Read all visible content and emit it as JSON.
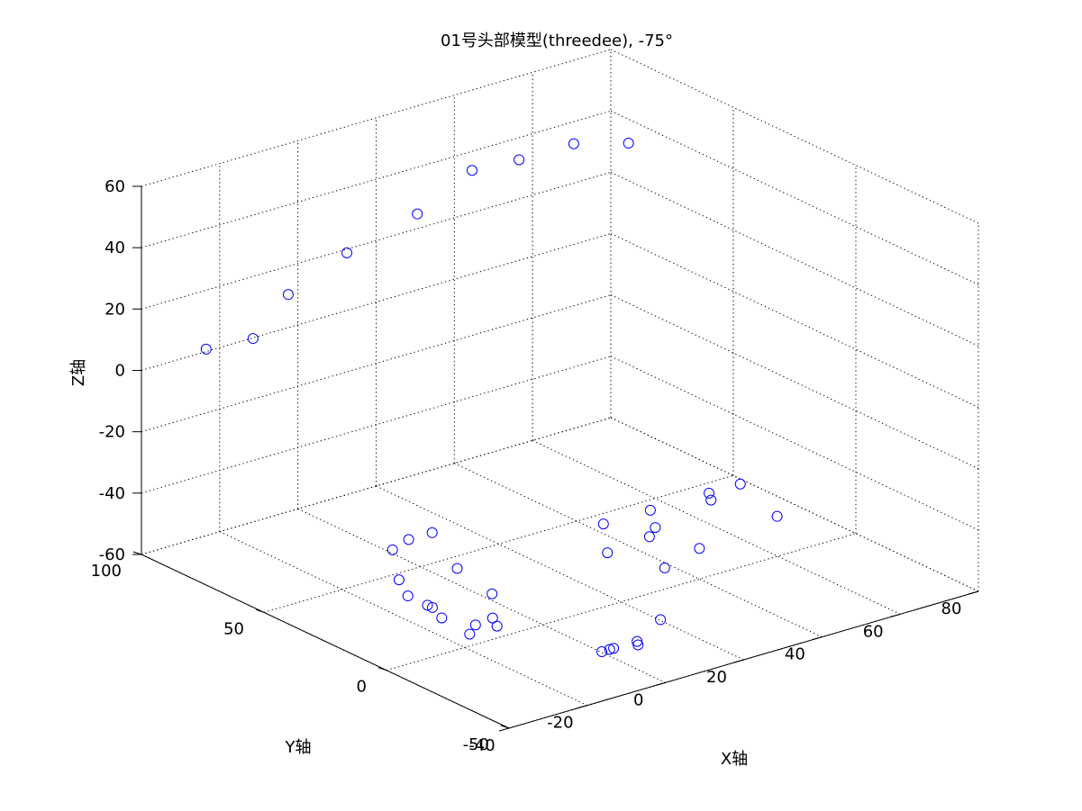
{
  "chart_data": {
    "type": "scatter",
    "title": "01号头部模型(threedee), -75°",
    "xlabel": "X轴",
    "ylabel": "Y轴",
    "zlabel": "Z轴",
    "xlim": [
      -40,
      80
    ],
    "ylim": [
      -50,
      100
    ],
    "zlim": [
      -60,
      60
    ],
    "x_ticks": [
      "-40",
      "-20",
      "0",
      "20",
      "40",
      "60",
      "80"
    ],
    "y_ticks": [
      "-50",
      "0",
      "50",
      "100"
    ],
    "z_ticks": [
      "-60",
      "-40",
      "-20",
      "0",
      "20",
      "40",
      "60"
    ],
    "grid": true,
    "marker": "circle",
    "marker_color": "#0000ff",
    "view": {
      "azimuth": -75
    },
    "points": [
      {
        "x": -36,
        "y": 80,
        "z": 13
      },
      {
        "x": -24,
        "y": 80,
        "z": 12
      },
      {
        "x": -15,
        "y": 80,
        "z": 23
      },
      {
        "x": 0,
        "y": 80,
        "z": 31
      },
      {
        "x": 18,
        "y": 80,
        "z": 37
      },
      {
        "x": 32,
        "y": 80,
        "z": 46
      },
      {
        "x": 44,
        "y": 80,
        "z": 45
      },
      {
        "x": 58,
        "y": 80,
        "z": 45
      },
      {
        "x": 72,
        "y": 80,
        "z": 40
      },
      {
        "x": 45,
        "y": 28,
        "z": -50
      },
      {
        "x": 68,
        "y": 28,
        "z": -50
      },
      {
        "x": 60,
        "y": 28,
        "z": -50
      },
      {
        "x": 33,
        "y": 28,
        "z": -50
      },
      {
        "x": 40,
        "y": 18,
        "z": -50
      },
      {
        "x": 36,
        "y": 14,
        "z": -50
      },
      {
        "x": 24,
        "y": 12,
        "z": -50
      },
      {
        "x": 40,
        "y": 0,
        "z": -50
      },
      {
        "x": 63,
        "y": 5,
        "z": -50
      },
      {
        "x": 28,
        "y": -5,
        "z": -50
      },
      {
        "x": 58,
        "y": 24,
        "z": -50
      },
      {
        "x": 3,
        "y": 50,
        "z": -50
      },
      {
        "x": -3,
        "y": 50,
        "z": -50
      },
      {
        "x": -9,
        "y": 47,
        "z": -50
      },
      {
        "x": -5,
        "y": 27,
        "z": -50
      },
      {
        "x": -18,
        "y": 30,
        "z": -50
      },
      {
        "x": -22,
        "y": 12,
        "z": -50
      },
      {
        "x": -22,
        "y": 10,
        "z": -50
      },
      {
        "x": -22,
        "y": 20,
        "z": -50
      },
      {
        "x": -24,
        "y": 3,
        "z": -50
      },
      {
        "x": -21,
        "y": -6,
        "z": -50
      },
      {
        "x": -25,
        "y": -10,
        "z": -50
      },
      {
        "x": -8,
        "y": 8,
        "z": -50
      },
      {
        "x": -16,
        "y": -5,
        "z": -50
      },
      {
        "x": -18,
        "y": -10,
        "z": -50
      },
      {
        "x": -10,
        "y": -40,
        "z": -50
      },
      {
        "x": -8,
        "y": -40,
        "z": -50
      },
      {
        "x": -2,
        "y": -42,
        "z": -50
      },
      {
        "x": -1,
        "y": -40,
        "z": -50
      },
      {
        "x": 10,
        "y": -32,
        "z": -50
      },
      {
        "x": -7,
        "y": -40,
        "z": -50
      }
    ]
  }
}
